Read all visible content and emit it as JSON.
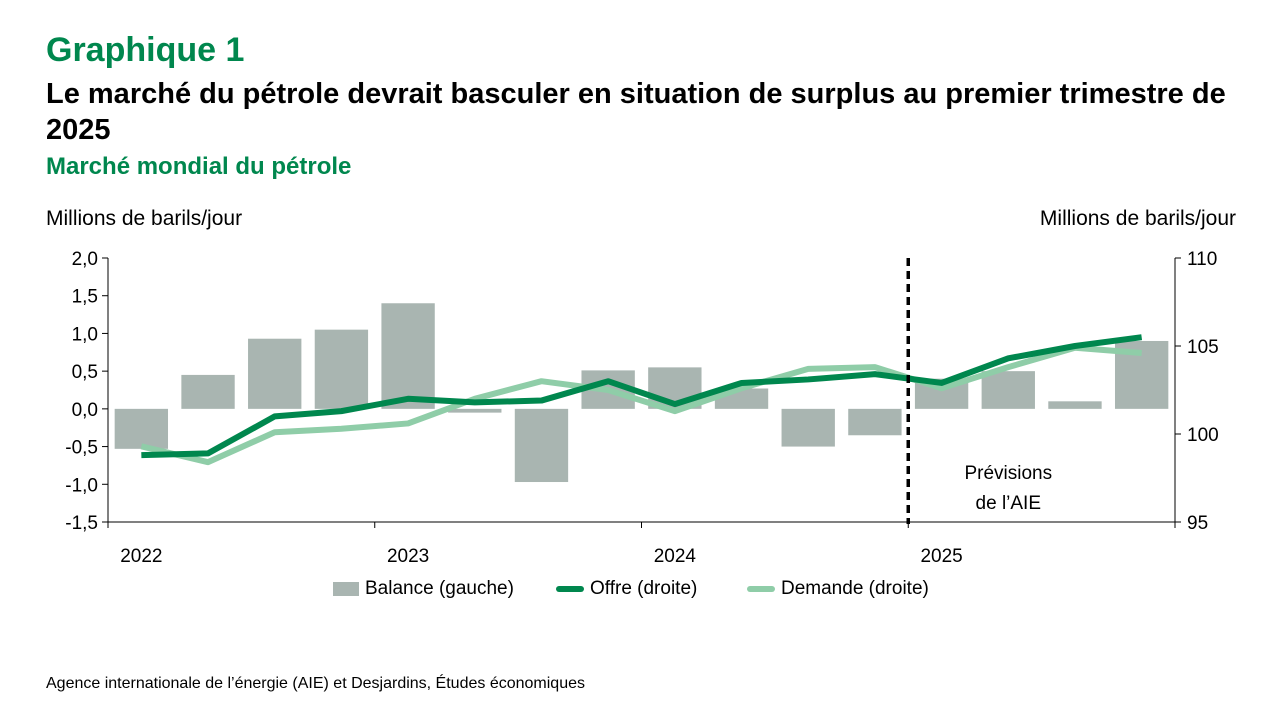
{
  "header": {
    "kicker": "Graphique 1",
    "title": "Le marché du pétrole devrait basculer en situation de surplus au premier trimestre de 2025",
    "subtitle": "Marché mondial du pétrole"
  },
  "axes": {
    "left_unit": "Millions de barils/jour",
    "right_unit": "Millions de barils/jour"
  },
  "annotation": {
    "line1": "Prévisions",
    "line2": "de l’AIE"
  },
  "legend": {
    "balance": "Balance (gauche)",
    "offre": "Offre (droite)",
    "demande": "Demande (droite)"
  },
  "source": "Agence internationale de l’énergie (AIE) et Desjardins, Études économiques",
  "colors": {
    "balance": "#a9b5b1",
    "offre": "#00874e",
    "demande": "#8fcda8",
    "kicker": "#00874e",
    "axis": "#000000"
  },
  "chart_data": {
    "type": "bar+line",
    "categories": [
      "2022 T1",
      "2022 T2",
      "2022 T3",
      "2022 T4",
      "2023 T1",
      "2023 T2",
      "2023 T3",
      "2023 T4",
      "2024 T1",
      "2024 T2",
      "2024 T3",
      "2024 T4",
      "2025 T1",
      "2025 T2",
      "2025 T3",
      "2025 T4"
    ],
    "year_labels": [
      {
        "label": "2022",
        "index": 0
      },
      {
        "label": "2023",
        "index": 4
      },
      {
        "label": "2024",
        "index": 8
      },
      {
        "label": "2025",
        "index": 12
      }
    ],
    "left_axis": {
      "min": -1.5,
      "max": 2.0,
      "ticks": [
        "2,0",
        "1,5",
        "1,0",
        "0,5",
        "0,0",
        "-0,5",
        "-1,0",
        "-1,5"
      ],
      "tick_values": [
        2.0,
        1.5,
        1.0,
        0.5,
        0.0,
        -0.5,
        -1.0,
        -1.5
      ]
    },
    "right_axis": {
      "min": 95,
      "max": 110,
      "ticks": [
        "110",
        "105",
        "100",
        "95"
      ],
      "tick_values": [
        110,
        105,
        100,
        95
      ]
    },
    "forecast_start_index": 12,
    "series": [
      {
        "name": "Balance (gauche)",
        "axis": "left",
        "kind": "bar",
        "values": [
          -0.53,
          0.45,
          0.93,
          1.05,
          1.4,
          -0.05,
          -0.97,
          0.51,
          0.55,
          0.27,
          -0.5,
          -0.35,
          0.4,
          0.5,
          0.1,
          0.9
        ]
      },
      {
        "name": "Offre (droite)",
        "axis": "right",
        "kind": "line",
        "values": [
          98.8,
          98.9,
          101.0,
          101.3,
          102.0,
          101.8,
          101.9,
          103.0,
          101.7,
          102.9,
          103.1,
          103.4,
          102.9,
          104.3,
          105.0,
          105.5
        ]
      },
      {
        "name": "Demande (droite)",
        "axis": "right",
        "kind": "line",
        "values": [
          99.3,
          98.4,
          100.1,
          100.3,
          100.6,
          102.0,
          103.0,
          102.5,
          101.3,
          102.6,
          103.7,
          103.8,
          102.6,
          103.8,
          104.9,
          104.6
        ]
      }
    ]
  }
}
